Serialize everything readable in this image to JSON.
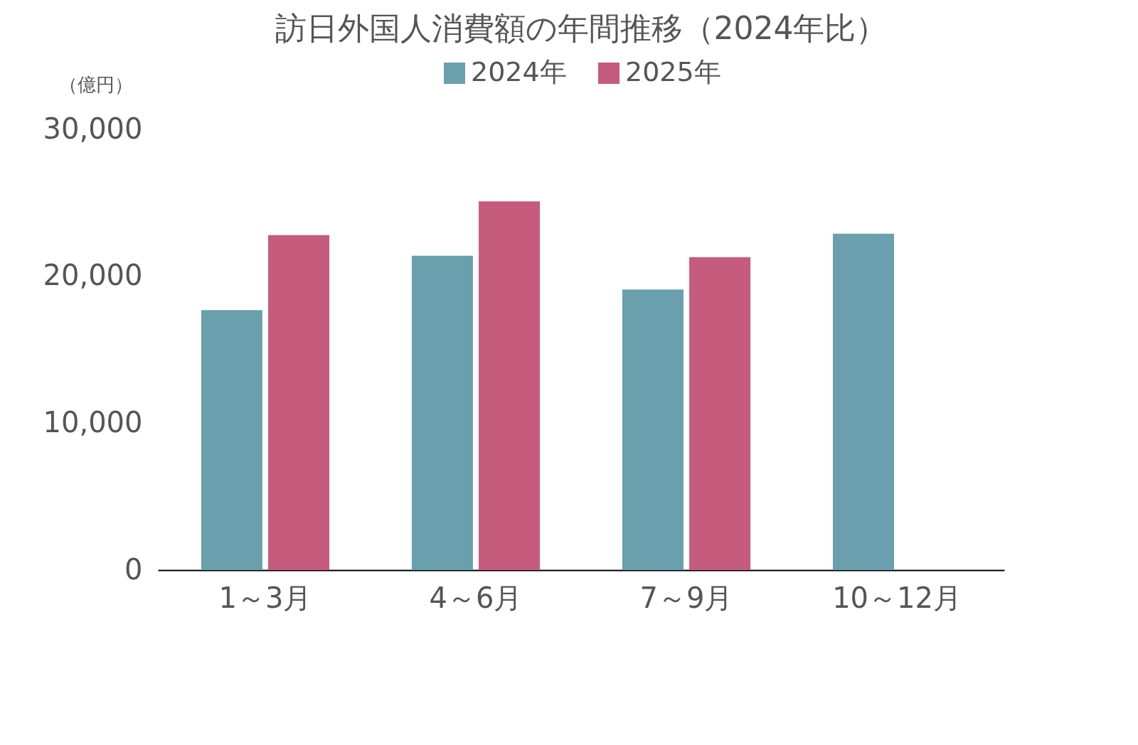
{
  "chart_data": {
    "type": "bar",
    "title": "訪日外国人消費額の年間推移（2024年比）",
    "ylabel": "（億円）",
    "categories": [
      "1～3月",
      "4～6月",
      "7～9月",
      "10～12月"
    ],
    "series": [
      {
        "name": "2024年",
        "color": "#6a9fad",
        "values": [
          17700,
          21400,
          19100,
          22900
        ]
      },
      {
        "name": "2025年",
        "color": "#c55b7d",
        "values": [
          22800,
          25100,
          21300,
          null
        ]
      }
    ],
    "ylim": [
      0,
      30000
    ],
    "yticks": [
      0,
      {
        "value": 10000,
        "label": "10,000"
      },
      {
        "value": 20000,
        "label": "20,000"
      },
      {
        "value": 30000,
        "label": "30,000"
      }
    ],
    "grid": false,
    "legend": "top"
  }
}
